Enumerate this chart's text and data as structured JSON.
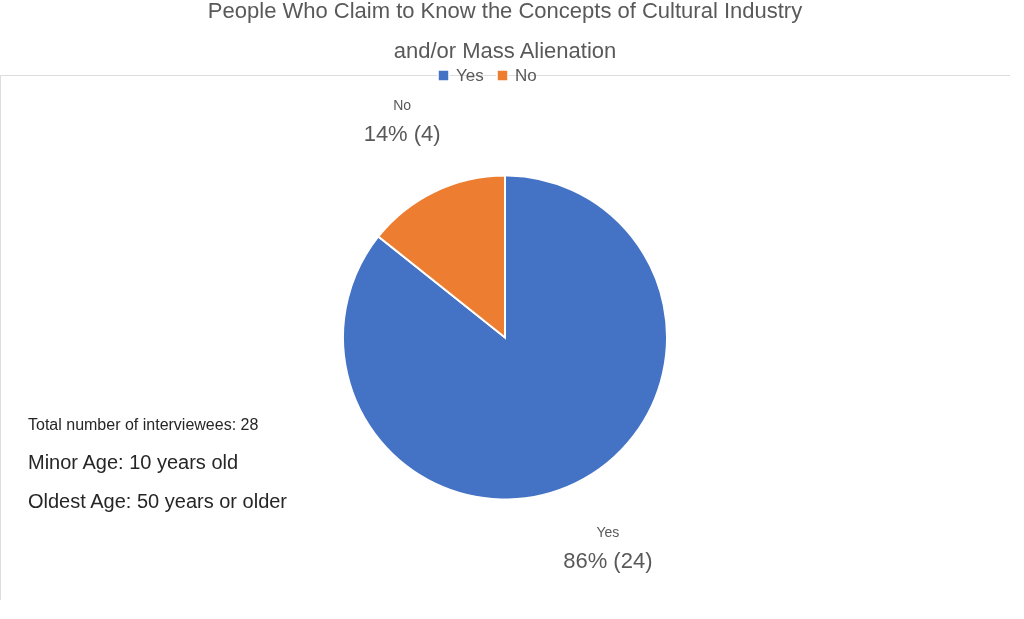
{
  "chart_data": {
    "type": "pie",
    "title": [
      "People Who Claim to Know the Concepts of Cultural Industry",
      "and/or Mass Alienation"
    ],
    "categories": [
      "Yes",
      "No"
    ],
    "values": [
      24,
      4
    ],
    "colors": [
      "#4472c4",
      "#ed7d31"
    ],
    "value_labels": [
      "86% (24)",
      "14% (4)"
    ],
    "legend": "top",
    "annotations": [
      "Total number of interviewees: 28",
      "Minor Age: 10 years old",
      "Oldest Age: 50 years or older"
    ]
  }
}
